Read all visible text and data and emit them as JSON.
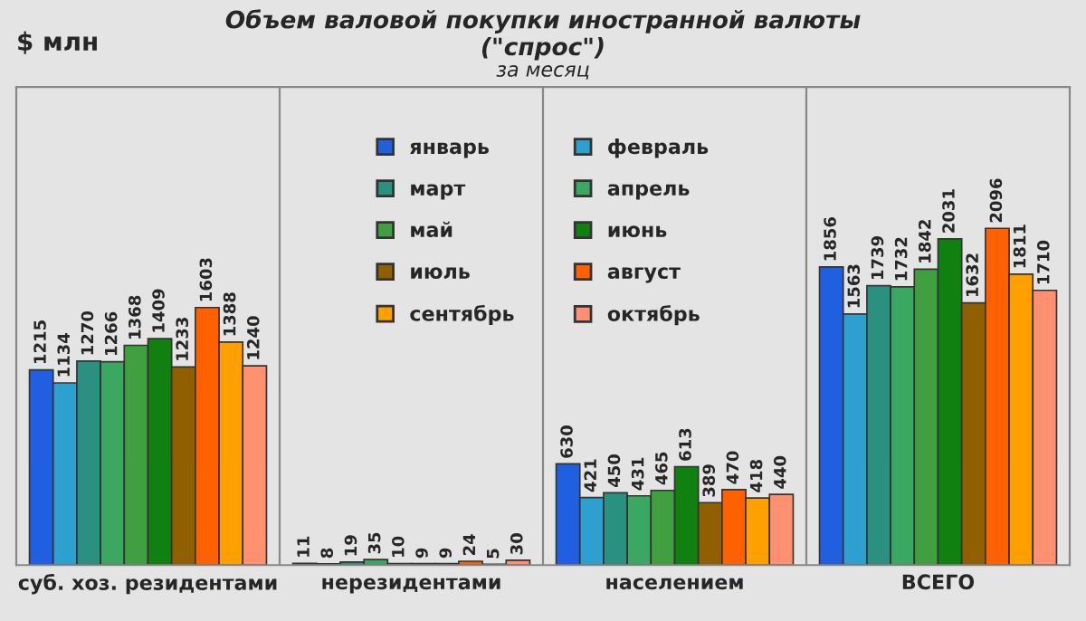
{
  "chart_data": {
    "type": "bar",
    "title": "Объем валовой покупки иностранной валюты\n(\"спрос\")",
    "subtitle": "за месяц",
    "annotations": [
      "$ млн"
    ],
    "categories": [
      "суб. хоз. резидентами",
      "нерезидентами",
      "населением",
      "ВСЕГО"
    ],
    "series": [
      {
        "name": "январь",
        "color": "#1f5fe0",
        "values": [
          1215,
          11,
          630,
          1856
        ]
      },
      {
        "name": "февраль",
        "color": "#2ea0d0",
        "values": [
          1134,
          8,
          421,
          1563
        ]
      },
      {
        "name": "март",
        "color": "#2a9080",
        "values": [
          1270,
          19,
          450,
          1739
        ]
      },
      {
        "name": "апрель",
        "color": "#3aa860",
        "values": [
          1266,
          35,
          431,
          1732
        ]
      },
      {
        "name": "май",
        "color": "#40a040",
        "values": [
          1368,
          10,
          465,
          1842
        ]
      },
      {
        "name": "июнь",
        "color": "#108010",
        "values": [
          1409,
          9,
          613,
          2031
        ]
      },
      {
        "name": "июль",
        "color": "#906000",
        "values": [
          1233,
          9,
          389,
          1632
        ]
      },
      {
        "name": "август",
        "color": "#ff6000",
        "values": [
          1603,
          24,
          470,
          2096
        ]
      },
      {
        "name": "сентябрь",
        "color": "#ffa000",
        "values": [
          1388,
          5,
          418,
          1811
        ]
      },
      {
        "name": "октябрь",
        "color": "#ff9070",
        "values": [
          1240,
          30,
          440,
          1710
        ]
      }
    ],
    "data_labels": true,
    "grid": "x",
    "legend": "top",
    "tick_labels": "x"
  }
}
